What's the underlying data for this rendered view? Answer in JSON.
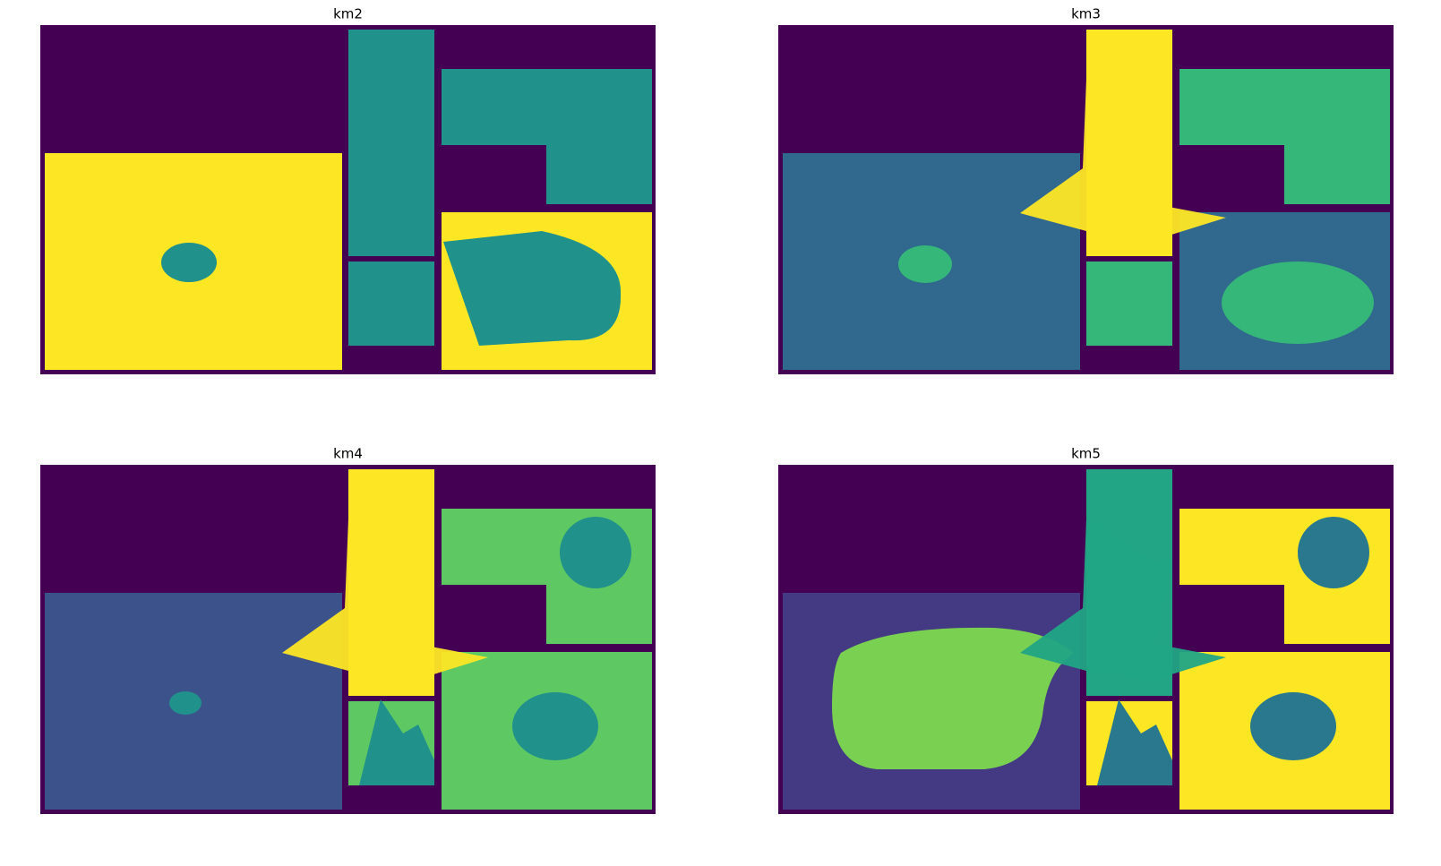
{
  "panels": [
    {
      "title": "km2"
    },
    {
      "title": "km3"
    },
    {
      "title": "km4"
    },
    {
      "title": "km5"
    }
  ]
}
